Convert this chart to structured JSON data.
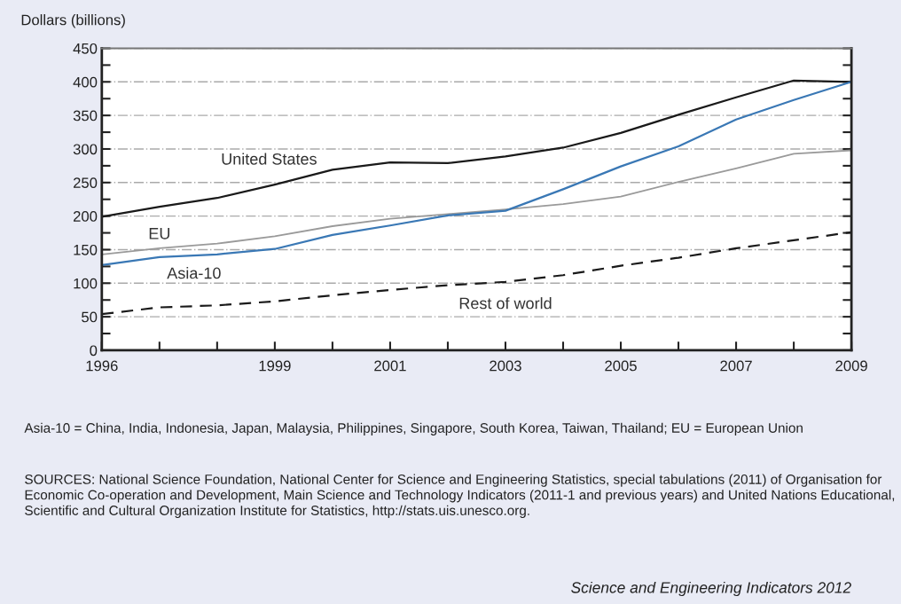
{
  "chart_data": {
    "type": "line",
    "ylabel": "Dollars (billions)",
    "x": [
      1996,
      1997,
      1998,
      1999,
      2000,
      2001,
      2002,
      2003,
      2004,
      2005,
      2006,
      2007,
      2008,
      2009
    ],
    "series": [
      {
        "name": "United States",
        "color": "#1a1a1a",
        "line_style": "solid",
        "values": [
          199,
          214,
          227,
          247,
          269,
          280,
          279,
          289,
          302,
          324,
          351,
          377,
          402,
          400
        ]
      },
      {
        "name": "EU",
        "color": "#9a9a9a",
        "line_style": "solid",
        "values": [
          143,
          152,
          159,
          170,
          185,
          196,
          203,
          210,
          218,
          229,
          251,
          271,
          293,
          298
        ]
      },
      {
        "name": "Asia-10",
        "color": "#3a78b5",
        "line_style": "solid",
        "values": [
          127,
          139,
          143,
          151,
          172,
          186,
          201,
          208,
          240,
          274,
          304,
          344,
          373,
          400
        ]
      },
      {
        "name": "Rest of world",
        "color": "#1a1a1a",
        "line_style": "dashed",
        "values": [
          54,
          64,
          67,
          73,
          82,
          90,
          97,
          102,
          112,
          126,
          138,
          152,
          164,
          176
        ]
      }
    ],
    "xlim": [
      1996,
      2009
    ],
    "xticks": [
      1996,
      {
        "value": 1997,
        "label": null
      },
      {
        "value": 1998,
        "label": null
      },
      1999,
      {
        "value": 2000,
        "label": null
      },
      2001,
      {
        "value": 2002,
        "label": null
      },
      2003,
      {
        "value": 2004,
        "label": null
      },
      2005,
      {
        "value": 2006,
        "label": null
      },
      2007,
      {
        "value": 2008,
        "label": null
      },
      2009
    ],
    "ylim": [
      0,
      450
    ],
    "yticks": [
      0,
      {
        "value": 25,
        "label": null
      },
      50,
      {
        "value": 75,
        "label": null
      },
      100,
      {
        "value": 125,
        "label": null
      },
      150,
      {
        "value": 175,
        "label": null
      },
      200,
      {
        "value": 225,
        "label": null
      },
      250,
      {
        "value": 275,
        "label": null
      },
      300,
      {
        "value": 325,
        "label": null
      },
      350,
      {
        "value": 375,
        "label": null
      },
      400,
      {
        "value": 425,
        "label": null
      },
      450
    ],
    "grid": "y",
    "legend": false,
    "marker": "none",
    "annotations": [
      "Asia-10 = China, India, Indonesia, Japan, Malaysia, Philippines, Singapore, South Korea, Taiwan, Thailand; EU = European Union",
      "SOURCES: National Science Foundation, National Center for Science and Engineering Statistics, special tabulations (2011) of Organisation for Economic Co-operation and Development, Main Science and Technology Indicators (2011-1 and previous years) and United Nations Educational, Scientific and Cultural Organization Institute for Statistics, http://stats.uis.unesco.org.",
      "Science and Engineering Indicators 2012"
    ]
  }
}
